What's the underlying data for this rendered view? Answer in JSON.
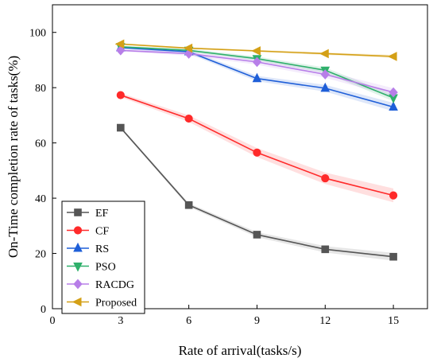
{
  "chart_data": {
    "type": "line",
    "title": "",
    "xlabel": "Rate of arrival(tasks/s)",
    "ylabel": "On-Time completion rate of tasks(%)",
    "xlim": [
      0,
      16.5
    ],
    "ylim": [
      0,
      110
    ],
    "xticks": [
      0,
      3,
      6,
      9,
      12,
      15
    ],
    "yticks": [
      0,
      20,
      40,
      60,
      80,
      100
    ],
    "grid": false,
    "legend_position": "bottom-left",
    "x": [
      3,
      6,
      9,
      12,
      15
    ],
    "series": [
      {
        "name": "EF",
        "values": [
          65.5,
          37.5,
          26.8,
          21.5,
          18.8
        ],
        "color": "#555555",
        "marker": "square",
        "band": 1.4
      },
      {
        "name": "CF",
        "values": [
          77.3,
          68.8,
          56.5,
          47.2,
          41.0
        ],
        "color": "#ff2a2a",
        "marker": "circle",
        "band": 2.5
      },
      {
        "name": "RS",
        "values": [
          94.5,
          93.0,
          83.3,
          79.8,
          73.0
        ],
        "color": "#1f5fd8",
        "marker": "triangle-up",
        "band": 1.5
      },
      {
        "name": "PSO",
        "values": [
          94.8,
          93.5,
          90.5,
          86.3,
          76.3
        ],
        "color": "#2fb06b",
        "marker": "triangle-down",
        "band": 1.2
      },
      {
        "name": "RACDG",
        "values": [
          93.5,
          92.3,
          89.3,
          84.8,
          78.3
        ],
        "color": "#b77ee8",
        "marker": "diamond",
        "band": 1.5
      },
      {
        "name": "Proposed",
        "values": [
          95.8,
          94.3,
          93.3,
          92.3,
          91.3
        ],
        "color": "#d4a017",
        "marker": "triangle-left",
        "band": 0.6
      }
    ]
  }
}
